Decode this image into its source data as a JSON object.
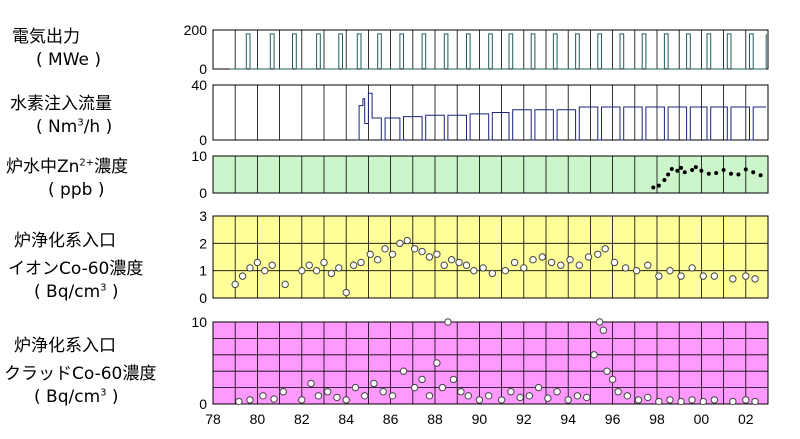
{
  "chart_data": [
    {
      "type": "line",
      "label_line1": "電気出力",
      "label_line2": "( MWe )",
      "ylim": [
        0,
        200
      ],
      "yticks": [
        "0",
        "200"
      ],
      "color": "#1f5e5a",
      "background": "#ffffff",
      "grid": true,
      "x": [
        "1978-10",
        "1979-07",
        "1979-09",
        "1980-08",
        "1980-10",
        "1981-08",
        "1981-10",
        "1982-09",
        "1982-11",
        "1983-09",
        "1983-11",
        "1984-07",
        "1984-09",
        "1985-06",
        "1985-08",
        "1986-06",
        "1986-08",
        "1987-06",
        "1987-08",
        "1988-06",
        "1988-08",
        "1989-06",
        "1989-08",
        "1990-06",
        "1990-08",
        "1991-05",
        "1991-07",
        "1992-05",
        "1992-07",
        "1993-05",
        "1993-07",
        "1994-05",
        "1994-07",
        "1995-05",
        "1995-07",
        "1996-05",
        "1996-07",
        "1997-05",
        "1997-07",
        "1998-05",
        "1998-07",
        "1999-05",
        "1999-07",
        "2000-04",
        "2000-06",
        "2001-03",
        "2001-05",
        "2002-03",
        "2002-05",
        "2002-12"
      ],
      "values": [
        0,
        180,
        0,
        180,
        0,
        180,
        0,
        180,
        0,
        180,
        0,
        180,
        0,
        180,
        0,
        180,
        0,
        180,
        0,
        180,
        0,
        180,
        0,
        180,
        0,
        180,
        0,
        180,
        0,
        180,
        0,
        180,
        0,
        180,
        0,
        180,
        0,
        180,
        0,
        180,
        0,
        180,
        0,
        180,
        0,
        180,
        0,
        180,
        0,
        180
      ]
    },
    {
      "type": "line",
      "label_line1": "水素注入流量",
      "label_line2": "( Nm3/h )",
      "ylim": [
        0,
        40
      ],
      "yticks": [
        "0",
        "40"
      ],
      "color": "#1a237e",
      "background": "#ffffff",
      "grid": true,
      "x": [
        "1984-07",
        "1984-08",
        "1984-10",
        "1984-11",
        "1985-01",
        "1985-03",
        "1985-08",
        "1985-10",
        "1986-06",
        "1986-08",
        "1987-06",
        "1987-08",
        "1988-06",
        "1988-08",
        "1989-06",
        "1989-08",
        "1990-06",
        "1990-08",
        "1991-05",
        "1991-07",
        "1992-05",
        "1992-07",
        "1993-05",
        "1993-07",
        "1994-05",
        "1994-07",
        "1995-05",
        "1995-07",
        "1996-05",
        "1996-07",
        "1997-05",
        "1997-07",
        "1998-05",
        "1998-07",
        "1999-05",
        "1999-07",
        "2000-04",
        "2000-06",
        "2001-03",
        "2001-05",
        "2002-03",
        "2002-05",
        "2002-12"
      ],
      "values": [
        0,
        25,
        30,
        12,
        34,
        16,
        0,
        16,
        0,
        17,
        0,
        18,
        0,
        18,
        0,
        19,
        0,
        20,
        0,
        22,
        0,
        22,
        0,
        22,
        0,
        24,
        0,
        24,
        0,
        24,
        0,
        24,
        0,
        24,
        0,
        24,
        0,
        24,
        0,
        24,
        0,
        24,
        24
      ]
    },
    {
      "type": "scatter",
      "label_line1": "炉水中Zn2+濃度",
      "label_line2": "( ppb )",
      "ylim": [
        0,
        10
      ],
      "yticks": [
        "0",
        "10"
      ],
      "color": "#000000",
      "background": "#ccf5cc",
      "grid": true,
      "x": [
        "1997-11",
        "1998-02",
        "1998-05",
        "1998-07",
        "1998-09",
        "1998-12",
        "1999-02",
        "1999-04",
        "1999-08",
        "1999-10",
        "2000-01",
        "2000-05",
        "2000-09",
        "2001-01",
        "2001-05",
        "2001-09",
        "2002-01",
        "2002-05",
        "2002-09"
      ],
      "values": [
        1.5,
        2.0,
        3.5,
        5.0,
        6.5,
        6.0,
        6.8,
        5.6,
        6.2,
        7.0,
        6.0,
        5.2,
        5.4,
        6.2,
        5.2,
        5.0,
        6.4,
        5.6,
        4.8
      ]
    },
    {
      "type": "scatter",
      "label_line1": "炉浄化系入口",
      "label_line2": "イオンCo-60濃度",
      "label_line3": "( Bq/cm3 )",
      "ylim": [
        0,
        3
      ],
      "yticks": [
        "0",
        "1",
        "2",
        "3"
      ],
      "color": "#444444",
      "background": "#ffff99",
      "grid": true,
      "x": [
        "1979-01",
        "1979-05",
        "1979-09",
        "1980-01",
        "1980-05",
        "1980-09",
        "1981-04",
        "1982-01",
        "1982-05",
        "1982-09",
        "1983-01",
        "1983-05",
        "1983-09",
        "1984-01",
        "1984-05",
        "1984-09",
        "1985-02",
        "1985-06",
        "1985-10",
        "1986-02",
        "1986-06",
        "1986-10",
        "1987-02",
        "1987-06",
        "1987-10",
        "1988-02",
        "1988-06",
        "1988-10",
        "1989-02",
        "1989-06",
        "1989-10",
        "1990-03",
        "1990-08",
        "1991-03",
        "1991-08",
        "1992-01",
        "1992-06",
        "1992-11",
        "1993-04",
        "1993-09",
        "1994-02",
        "1994-07",
        "1994-12",
        "1995-05",
        "1995-09",
        "1996-02",
        "1996-08",
        "1997-02",
        "1997-08",
        "1998-02",
        "1998-08",
        "1999-02",
        "1999-08",
        "2000-02",
        "2000-08",
        "2001-06",
        "2002-01",
        "2002-06"
      ],
      "values": [
        0.5,
        0.8,
        1.1,
        1.3,
        1.0,
        1.2,
        0.5,
        1.0,
        1.2,
        1.0,
        1.3,
        0.9,
        1.1,
        0.2,
        1.2,
        1.3,
        1.6,
        1.4,
        1.8,
        1.6,
        2.0,
        2.1,
        1.8,
        1.7,
        1.5,
        1.6,
        1.2,
        1.4,
        1.3,
        1.2,
        1.0,
        1.1,
        0.9,
        1.0,
        1.3,
        1.1,
        1.4,
        1.5,
        1.3,
        1.2,
        1.4,
        1.2,
        1.5,
        1.6,
        1.8,
        1.3,
        1.1,
        1.0,
        1.2,
        0.8,
        1.0,
        0.8,
        1.1,
        0.8,
        0.8,
        0.7,
        0.8,
        0.7
      ]
    },
    {
      "type": "scatter",
      "label_line1": "炉浄化系入口",
      "label_line2": "クラッドCo-60濃度",
      "label_line3": "( Bq/cm3 )",
      "ylim": [
        0,
        10
      ],
      "yticks": [
        "0",
        "10"
      ],
      "color": "#444444",
      "background": "#ff99ff",
      "grid": true,
      "x": [
        "1979-03",
        "1979-09",
        "1980-04",
        "1980-10",
        "1981-03",
        "1982-01",
        "1982-06",
        "1982-10",
        "1983-03",
        "1983-08",
        "1984-01",
        "1984-06",
        "1984-11",
        "1985-04",
        "1985-09",
        "1986-02",
        "1986-08",
        "1987-02",
        "1987-06",
        "1987-10",
        "1988-02",
        "1988-05",
        "1988-08",
        "1988-11",
        "1989-03",
        "1989-07",
        "1990-01",
        "1990-06",
        "1991-01",
        "1991-06",
        "1991-11",
        "1992-04",
        "1992-09",
        "1993-02",
        "1993-07",
        "1994-01",
        "1994-06",
        "1994-11",
        "1995-03",
        "1995-06",
        "1995-08",
        "1995-10",
        "1996-01",
        "1996-04",
        "1996-09",
        "1997-03",
        "1997-08",
        "1998-02",
        "1998-08",
        "1999-02",
        "1999-08",
        "2000-02",
        "2000-08",
        "2001-06",
        "2002-01",
        "2002-06"
      ],
      "values": [
        0.3,
        0.5,
        1.0,
        0.6,
        1.5,
        0.5,
        2.5,
        1.0,
        1.5,
        0.8,
        0.5,
        2.0,
        1.0,
        2.5,
        1.5,
        1.0,
        4.0,
        2.0,
        3.0,
        1.0,
        5.0,
        2.0,
        10.0,
        3.0,
        1.5,
        1.0,
        0.5,
        1.0,
        0.5,
        1.5,
        0.8,
        1.0,
        2.0,
        0.7,
        1.5,
        0.5,
        1.0,
        0.8,
        6.0,
        10.0,
        9.0,
        4.0,
        3.0,
        1.5,
        1.0,
        0.5,
        0.8,
        0.3,
        0.5,
        0.3,
        0.5,
        0.3,
        0.5,
        0.3,
        0.5,
        0.3
      ]
    }
  ],
  "x_axis": {
    "start_year": 1978,
    "end_year": 2003,
    "tick_labels": [
      "78",
      "80",
      "82",
      "84",
      "86",
      "88",
      "90",
      "92",
      "94",
      "96",
      "98",
      "00",
      "02"
    ]
  }
}
